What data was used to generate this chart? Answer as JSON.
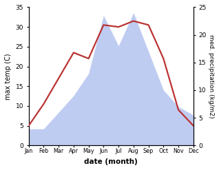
{
  "months": [
    "Jan",
    "Feb",
    "Mar",
    "Apr",
    "May",
    "Jun",
    "Jul",
    "Aug",
    "Sep",
    "Oct",
    "Nov",
    "Dec"
  ],
  "month_x": [
    1,
    2,
    3,
    4,
    5,
    6,
    7,
    8,
    9,
    10,
    11,
    12
  ],
  "temperature": [
    5.0,
    10.5,
    17.0,
    23.5,
    22.0,
    30.5,
    30.0,
    31.5,
    30.5,
    22.0,
    9.0,
    5.0
  ],
  "precipitation": [
    3.0,
    3.0,
    6.0,
    9.0,
    13.0,
    23.5,
    18.0,
    24.0,
    17.0,
    10.0,
    7.0,
    5.5
  ],
  "temp_ylim": [
    0,
    35
  ],
  "precip_ylim": [
    0,
    25
  ],
  "temp_yticks": [
    0,
    5,
    10,
    15,
    20,
    25,
    30,
    35
  ],
  "precip_yticks": [
    0,
    5,
    10,
    15,
    20,
    25
  ],
  "xlabel": "date (month)",
  "ylabel_left": "max temp (C)",
  "ylabel_right": "med. precipitation (kg/m2)",
  "line_color": "#bb3333",
  "fill_color": "#aabbee",
  "fill_alpha": 0.75,
  "line_width": 1.6,
  "background_color": "#ffffff"
}
